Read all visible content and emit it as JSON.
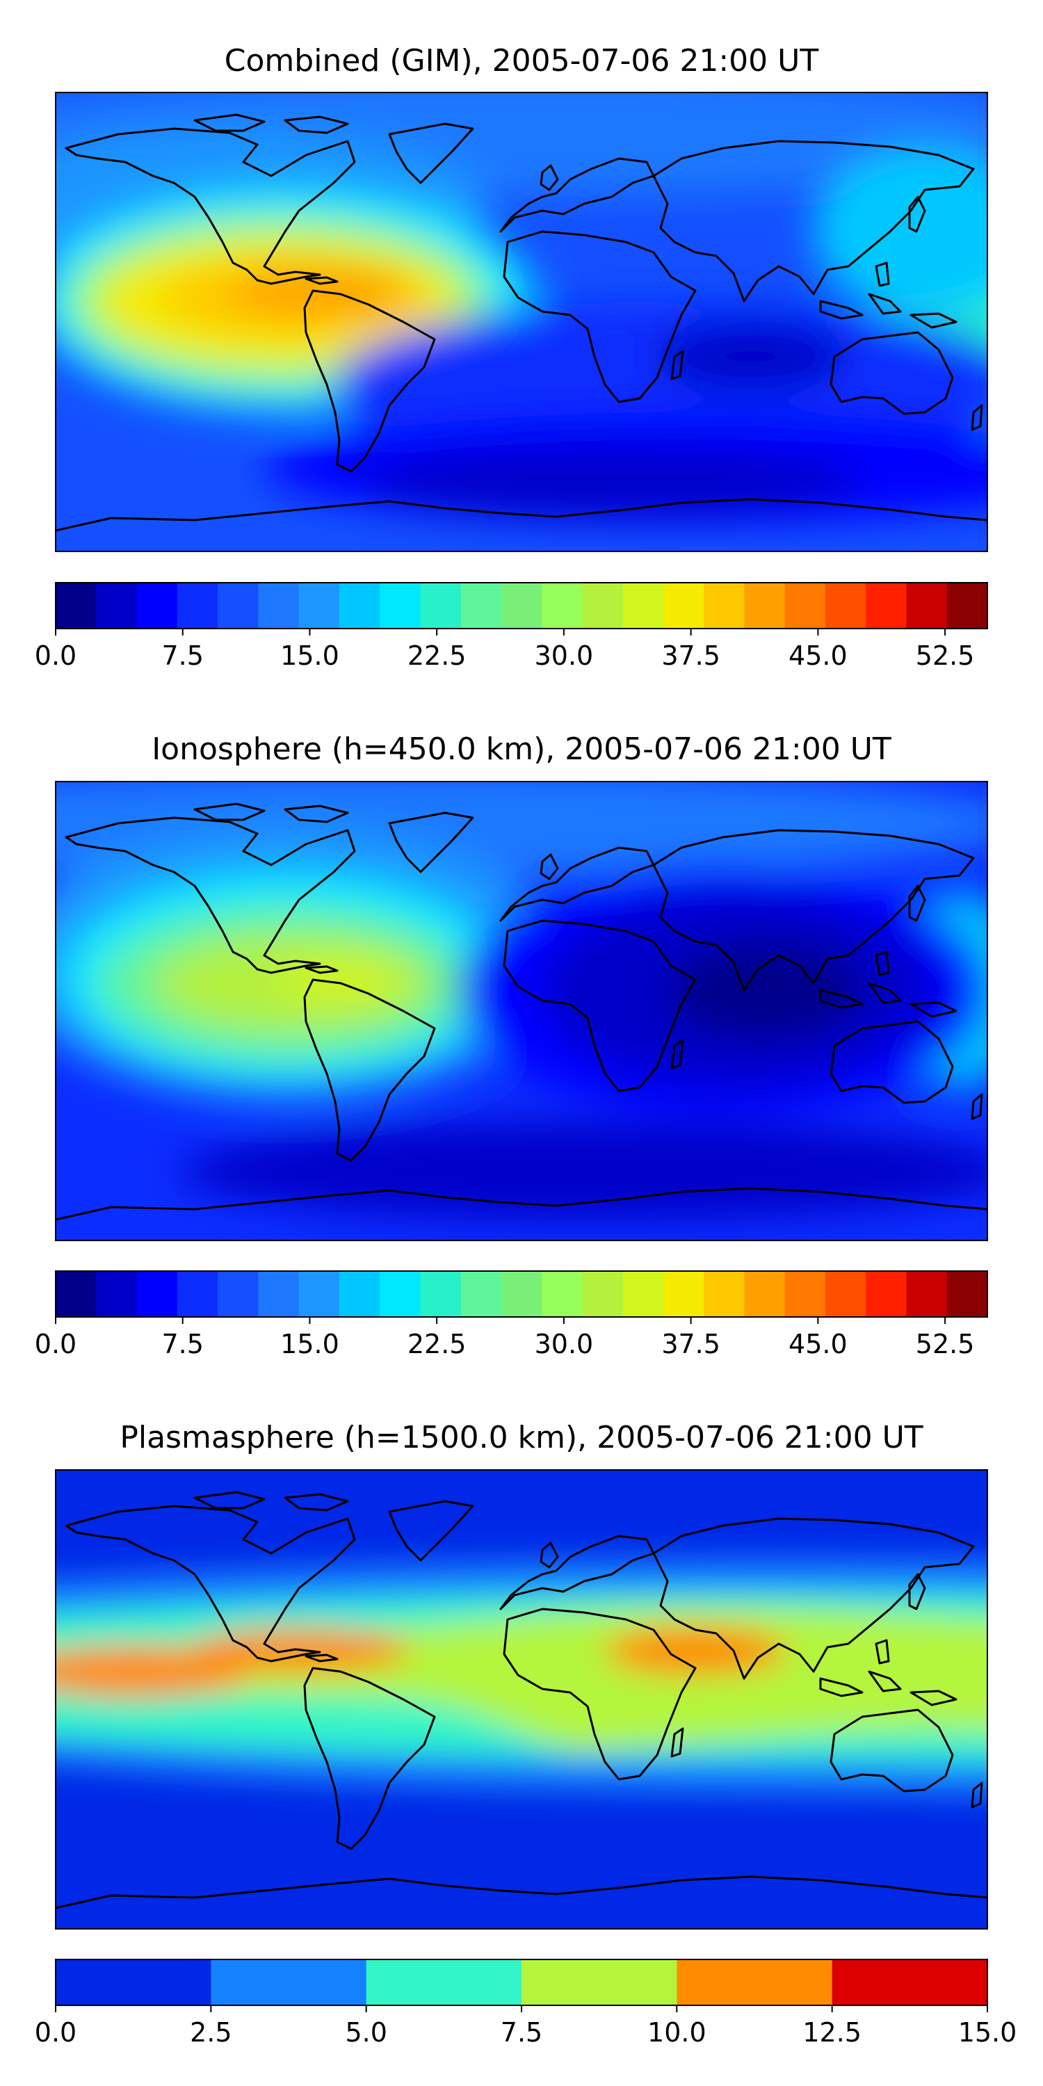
{
  "figure": {
    "panels": [
      {
        "title": "Combined (GIM), 2005-07-06 21:00 UT",
        "colorbar_ticks": [
          "0.0",
          "7.5",
          "15.0",
          "22.5",
          "30.0",
          "37.5",
          "45.0",
          "52.5"
        ],
        "colorbar_range": [
          0,
          55
        ],
        "colorbar_colors": [
          "#00008b",
          "#0000c8",
          "#0000ff",
          "#0c2dff",
          "#1450ff",
          "#1e78ff",
          "#1e96ff",
          "#00c8ff",
          "#00e8ff",
          "#28f0c8",
          "#5ef59a",
          "#78f078",
          "#96ff5a",
          "#b4f03c",
          "#d2f51e",
          "#f5eb00",
          "#ffc800",
          "#ffa000",
          "#ff7800",
          "#ff5000",
          "#ff2000",
          "#c80000",
          "#8b0000"
        ],
        "field": {
          "type": "contour",
          "peak_value": 41,
          "peak_location": "Caribbean / northern South America",
          "min_value": 2
        }
      },
      {
        "title": "Ionosphere  (h=450.0 km), 2005-07-06 21:00 UT",
        "colorbar_ticks": [
          "0.0",
          "7.5",
          "15.0",
          "22.5",
          "30.0",
          "37.5",
          "45.0",
          "52.5"
        ],
        "colorbar_range": [
          0,
          55
        ],
        "colorbar_colors": [
          "#00008b",
          "#0000c8",
          "#0000ff",
          "#0c2dff",
          "#1450ff",
          "#1e78ff",
          "#1e96ff",
          "#00c8ff",
          "#00e8ff",
          "#28f0c8",
          "#5ef59a",
          "#78f078",
          "#96ff5a",
          "#b4f03c",
          "#d2f51e",
          "#f5eb00",
          "#ffc800",
          "#ffa000",
          "#ff7800",
          "#ff5000",
          "#ff2000",
          "#c80000",
          "#8b0000"
        ],
        "field": {
          "type": "contour",
          "peak_value": 31,
          "peak_location": "Caribbean",
          "min_value": 1
        }
      },
      {
        "title": "Plasmasphere (h=1500.0 km), 2005-07-06 21:00 UT",
        "colorbar_ticks": [
          "0.0",
          "2.5",
          "5.0",
          "7.5",
          "10.0",
          "12.5",
          "15.0"
        ],
        "colorbar_range": [
          0,
          15
        ],
        "colorbar_colors": [
          "#0028e6",
          "#1482ff",
          "#32f5c8",
          "#b4f53c",
          "#ff8c00",
          "#dc0000"
        ],
        "field": {
          "type": "contour",
          "peak_value": 11,
          "peak_location": "equatorial band",
          "min_value": 1
        }
      }
    ]
  }
}
